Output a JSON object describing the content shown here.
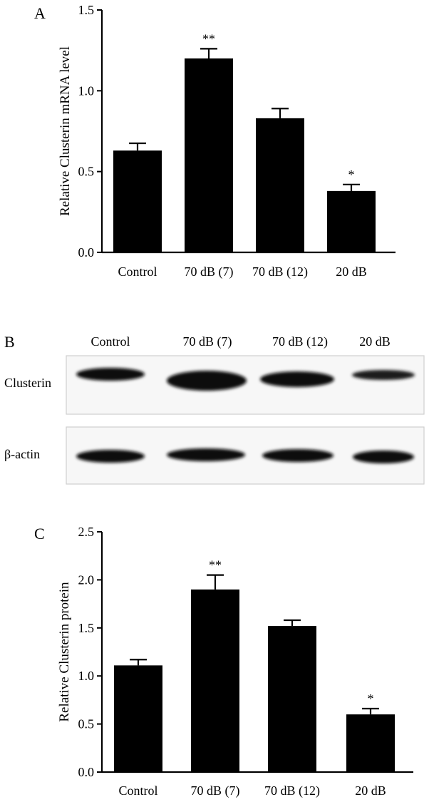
{
  "panels": {
    "a": {
      "letter": "A"
    },
    "b": {
      "letter": "B",
      "lanes": [
        "Control",
        "70 dB (7)",
        "70 dB (12)",
        "20 dB"
      ],
      "rows": [
        {
          "label": "Clusterin"
        },
        {
          "label": "β-actin"
        }
      ]
    },
    "c": {
      "letter": "C"
    }
  },
  "chart_data": [
    {
      "type": "bar",
      "categories": [
        "Control",
        "70 dB (7)",
        "70 dB (12)",
        "20 dB"
      ],
      "series": [
        {
          "values": [
            0.63,
            1.2,
            0.83,
            0.38
          ],
          "errors": [
            0.045,
            0.06,
            0.06,
            0.04
          ],
          "significance": [
            "",
            "**",
            "",
            "*"
          ]
        }
      ],
      "ylabel": "Relative Clusterin mRNA level",
      "ylim": [
        0,
        1.5
      ],
      "yticks": [
        "0.0",
        "0.5",
        "1.0",
        "1.5"
      ],
      "bar_color": "#000000"
    },
    {
      "type": "bar",
      "categories": [
        "Control",
        "70 dB (7)",
        "70 dB (12)",
        "20 dB"
      ],
      "series": [
        {
          "values": [
            1.11,
            1.9,
            1.52,
            0.6
          ],
          "errors": [
            0.06,
            0.15,
            0.06,
            0.06
          ],
          "significance": [
            "",
            "**",
            "",
            "*"
          ]
        }
      ],
      "ylabel": "Relative Clusterin protein",
      "ylim": [
        0,
        2.5
      ],
      "yticks": [
        "0.0",
        "0.5",
        "1.0",
        "1.5",
        "2.0",
        "2.5"
      ],
      "bar_color": "#000000"
    }
  ]
}
